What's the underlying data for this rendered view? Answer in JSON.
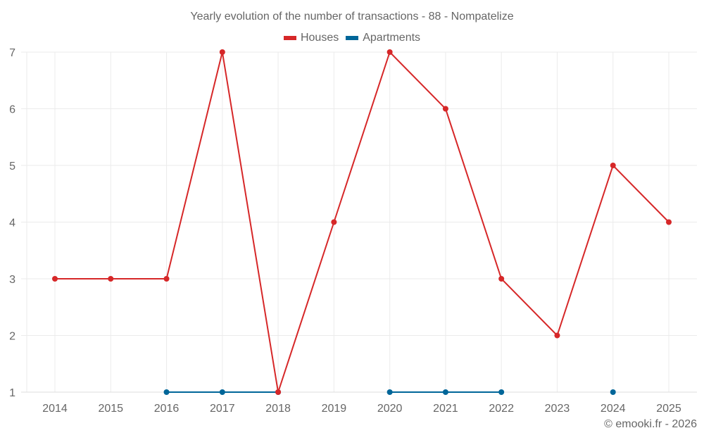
{
  "title": "Yearly evolution of the number of transactions - 88 - Nompatelize",
  "credit": "© emooki.fr - 2026",
  "legend": [
    {
      "label": "Houses",
      "color": "#d62728"
    },
    {
      "label": "Apartments",
      "color": "#006699"
    }
  ],
  "chart_data": {
    "type": "line",
    "title": "Yearly evolution of the number of transactions - 88 - Nompatelize",
    "xlabel": "",
    "ylabel": "",
    "categories": [
      "2014",
      "2015",
      "2016",
      "2017",
      "2018",
      "2019",
      "2020",
      "2021",
      "2022",
      "2023",
      "2024",
      "2025"
    ],
    "ylim": [
      1,
      7
    ],
    "yticks": [
      1,
      2,
      3,
      4,
      5,
      6,
      7
    ],
    "grid": true,
    "legend_position": "top",
    "series": [
      {
        "name": "Houses",
        "color": "#d62728",
        "values": [
          3,
          3,
          3,
          7,
          1,
          4,
          7,
          6,
          3,
          2,
          5,
          4
        ]
      },
      {
        "name": "Apartments",
        "color": "#006699",
        "values": [
          null,
          null,
          1,
          1,
          1,
          null,
          1,
          1,
          1,
          null,
          1,
          null
        ]
      }
    ]
  }
}
